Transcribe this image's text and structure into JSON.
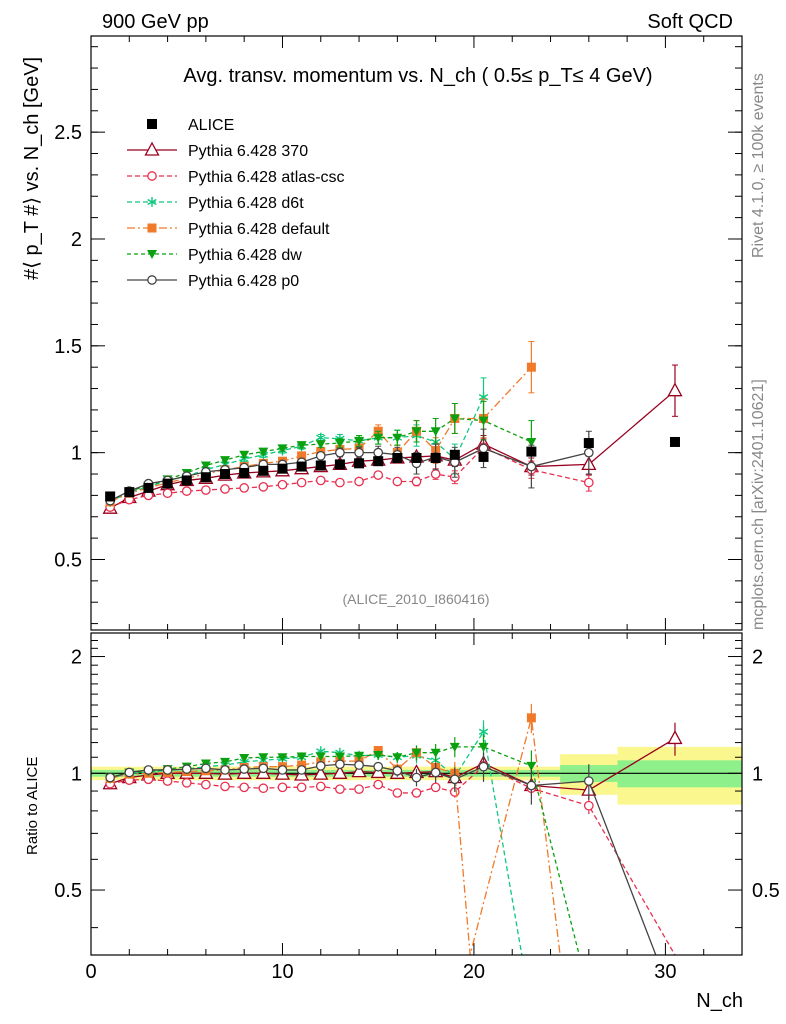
{
  "header": {
    "left": "900 GeV pp",
    "right": "Soft QCD"
  },
  "side": {
    "rivet": "Rivet 4.1.0, ≥ 100k events",
    "mcplots": "mcplots.cern.ch [arXiv:2401.10621]"
  },
  "chart_data": {
    "type": "line",
    "title": "Avg. transv. momentum vs. N_ch ( 0.5≤ p_T≤ 4 GeV)",
    "analysis_tag": "(ALICE_2010_I860416)",
    "xlabel": "N_ch",
    "ylabel": "#⟨ p_T #⟩ vs. N_ch [GeV]",
    "ratio_ylabel": "Ratio to ALICE",
    "xlim": [
      0,
      34
    ],
    "ylim": [
      0.17,
      2.95
    ],
    "ratio_ylim": [
      0.34,
      2.3
    ],
    "x_ticks": [
      "0",
      "10",
      "20",
      "30"
    ],
    "y_ticks": [
      "0.5",
      "1",
      "1.5",
      "2",
      "2.5"
    ],
    "ratio_y_ticks": [
      "0.5",
      "1",
      "2"
    ],
    "reference": {
      "name": "ALICE",
      "x": [
        1,
        2,
        3,
        4,
        5,
        6,
        7,
        8,
        9,
        10,
        11,
        12,
        13,
        14,
        15,
        16,
        17,
        18,
        19,
        20.5,
        23,
        26,
        30.5
      ],
      "y": [
        0.795,
        0.815,
        0.835,
        0.855,
        0.87,
        0.885,
        0.9,
        0.905,
        0.915,
        0.925,
        0.935,
        0.94,
        0.945,
        0.95,
        0.96,
        0.975,
        0.975,
        0.975,
        0.99,
        0.98,
        1.005,
        1.045,
        1.05
      ],
      "ratio_band": [
        {
          "x0": 0,
          "x1": 24.5,
          "green": 0.02,
          "yellow": 0.04
        },
        {
          "x0": 24.5,
          "x1": 27.5,
          "green": 0.05,
          "yellow": 0.12
        },
        {
          "x0": 27.5,
          "x1": 34,
          "green": 0.08,
          "yellow": 0.17
        }
      ]
    },
    "series": [
      {
        "name": "Pythia 6.428 370",
        "color": "#99001f",
        "marker": "triangle-open",
        "dash": "",
        "x": [
          1,
          2,
          3,
          4,
          5,
          6,
          7,
          8,
          9,
          10,
          11,
          12,
          13,
          14,
          15,
          16,
          17,
          18,
          19,
          20.5,
          23,
          26,
          30.5
        ],
        "y": [
          0.74,
          0.79,
          0.82,
          0.85,
          0.87,
          0.88,
          0.895,
          0.905,
          0.91,
          0.915,
          0.925,
          0.935,
          0.945,
          0.96,
          0.965,
          0.975,
          0.98,
          0.985,
          0.965,
          1.04,
          0.935,
          0.945,
          1.29
        ],
        "err": [
          0.01,
          0.01,
          0.01,
          0.01,
          0.01,
          0.01,
          0.01,
          0.01,
          0.01,
          0.01,
          0.01,
          0.01,
          0.01,
          0.012,
          0.014,
          0.016,
          0.02,
          0.025,
          0.03,
          0.04,
          0.04,
          0.05,
          0.12
        ]
      },
      {
        "name": "Pythia 6.428 atlas-csc",
        "color": "#e8304f",
        "marker": "circle-open",
        "dash": "5,3",
        "x": [
          1,
          2,
          3,
          4,
          5,
          6,
          7,
          8,
          9,
          10,
          11,
          12,
          13,
          14,
          15,
          16,
          17,
          18,
          19,
          20.5,
          23,
          26
        ],
        "y": [
          0.745,
          0.78,
          0.8,
          0.81,
          0.82,
          0.825,
          0.83,
          0.835,
          0.84,
          0.85,
          0.86,
          0.87,
          0.86,
          0.865,
          0.895,
          0.865,
          0.865,
          0.9,
          0.885,
          1.025,
          0.92,
          0.86
        ],
        "err": [
          0.01,
          0.01,
          0.01,
          0.01,
          0.01,
          0.01,
          0.01,
          0.01,
          0.01,
          0.01,
          0.01,
          0.012,
          0.012,
          0.012,
          0.015,
          0.015,
          0.02,
          0.025,
          0.03,
          0.04,
          0.04,
          0.04
        ]
      },
      {
        "name": "Pythia 6.428 d6t",
        "color": "#10c880",
        "marker": "star",
        "dash": "5,3",
        "x": [
          1,
          2,
          3,
          4,
          5,
          6,
          7,
          8,
          9,
          10,
          11,
          12,
          13,
          14,
          15,
          16,
          17,
          18,
          19,
          20.5
        ],
        "y": [
          0.77,
          0.815,
          0.84,
          0.87,
          0.89,
          0.92,
          0.945,
          0.97,
          0.99,
          1.01,
          1.03,
          1.07,
          1.065,
          1.055,
          1.07,
          1.07,
          1.08,
          1.05,
          0.97,
          1.26
        ],
        "err": [
          0.01,
          0.01,
          0.01,
          0.01,
          0.01,
          0.01,
          0.01,
          0.012,
          0.012,
          0.012,
          0.014,
          0.015,
          0.02,
          0.025,
          0.03,
          0.035,
          0.05,
          0.06,
          0.07,
          0.09
        ]
      },
      {
        "name": "Pythia 6.428 default",
        "color": "#f07a2a",
        "marker": "square",
        "dash": "8,3,2,3",
        "x": [
          1,
          2,
          3,
          4,
          5,
          6,
          7,
          8,
          9,
          10,
          11,
          12,
          13,
          14,
          15,
          16,
          17,
          18,
          19,
          20.5,
          23
        ],
        "y": [
          0.77,
          0.81,
          0.835,
          0.86,
          0.88,
          0.9,
          0.92,
          0.935,
          0.95,
          0.96,
          0.985,
          1.005,
          1.015,
          1.02,
          1.1,
          1.0,
          1.1,
          1.01,
          1.16,
          1.16,
          1.4
        ],
        "err": [
          0.01,
          0.01,
          0.01,
          0.01,
          0.01,
          0.01,
          0.01,
          0.012,
          0.012,
          0.012,
          0.014,
          0.015,
          0.02,
          0.025,
          0.03,
          0.035,
          0.05,
          0.06,
          0.07,
          0.09,
          0.12
        ]
      },
      {
        "name": "Pythia 6.428 dw",
        "color": "#0ba00f",
        "marker": "triangle-down",
        "dash": "4,3",
        "x": [
          1,
          2,
          3,
          4,
          5,
          6,
          7,
          8,
          9,
          10,
          11,
          12,
          13,
          14,
          15,
          16,
          17,
          18,
          19,
          20.5,
          23
        ],
        "y": [
          0.775,
          0.82,
          0.845,
          0.875,
          0.905,
          0.94,
          0.965,
          0.99,
          1.005,
          1.02,
          1.035,
          1.04,
          1.045,
          1.055,
          1.07,
          1.07,
          1.1,
          1.1,
          1.16,
          1.15,
          1.05
        ],
        "err": [
          0.01,
          0.01,
          0.01,
          0.01,
          0.01,
          0.01,
          0.01,
          0.012,
          0.012,
          0.012,
          0.014,
          0.015,
          0.02,
          0.025,
          0.03,
          0.035,
          0.05,
          0.06,
          0.07,
          0.09,
          0.1
        ]
      },
      {
        "name": "Pythia 6.428 p0",
        "color": "#444444",
        "marker": "circle-open",
        "dash": "",
        "x": [
          1,
          2,
          3,
          4,
          5,
          6,
          7,
          8,
          9,
          10,
          11,
          12,
          13,
          14,
          15,
          16,
          17,
          18,
          19,
          20.5,
          23,
          26
        ],
        "y": [
          0.775,
          0.82,
          0.855,
          0.87,
          0.89,
          0.91,
          0.92,
          0.93,
          0.945,
          0.945,
          0.955,
          0.985,
          1.0,
          1.0,
          1.0,
          0.99,
          0.95,
          0.98,
          0.955,
          1.02,
          0.935,
          1.0
        ],
        "err": [
          0.01,
          0.01,
          0.01,
          0.01,
          0.01,
          0.01,
          0.01,
          0.012,
          0.012,
          0.012,
          0.014,
          0.015,
          0.02,
          0.025,
          0.03,
          0.035,
          0.05,
          0.06,
          0.07,
          0.09,
          0.1,
          0.1
        ]
      }
    ],
    "ratio_series": [
      {
        "name": "Pythia 6.428 370",
        "x": [
          1,
          2,
          3,
          4,
          5,
          6,
          7,
          8,
          9,
          10,
          11,
          12,
          13,
          14,
          15,
          16,
          17,
          18,
          19,
          20.5,
          23,
          26,
          30.5
        ],
        "y": [
          0.94,
          0.975,
          0.99,
          1.0,
          1.0,
          1.0,
          0.995,
          1.0,
          1.0,
          0.995,
          0.99,
          0.995,
          1.0,
          1.01,
          1.005,
          1.0,
          1.005,
          1.01,
          0.975,
          1.06,
          0.93,
          0.905,
          1.23
        ]
      },
      {
        "name": "Pythia 6.428 atlas-csc",
        "x": [
          1,
          2,
          3,
          4,
          5,
          6,
          7,
          8,
          9,
          10,
          11,
          12,
          13,
          14,
          15,
          16,
          17,
          18,
          19,
          20.5,
          23,
          26,
          30.5
        ],
        "y": [
          0.94,
          0.96,
          0.965,
          0.955,
          0.945,
          0.935,
          0.925,
          0.92,
          0.915,
          0.92,
          0.92,
          0.925,
          0.91,
          0.91,
          0.935,
          0.89,
          0.89,
          0.92,
          0.895,
          1.045,
          0.915,
          0.825,
          0.3
        ]
      },
      {
        "name": "Pythia 6.428 d6t",
        "x": [
          1,
          2,
          3,
          4,
          5,
          6,
          7,
          8,
          9,
          10,
          11,
          12,
          13,
          14,
          15,
          16,
          17,
          18,
          19,
          20.5,
          22.5
        ],
        "y": [
          0.97,
          1.0,
          1.005,
          1.02,
          1.025,
          1.04,
          1.05,
          1.07,
          1.08,
          1.09,
          1.1,
          1.14,
          1.13,
          1.11,
          1.115,
          1.1,
          1.11,
          1.08,
          0.98,
          1.28,
          0.3
        ]
      },
      {
        "name": "Pythia 6.428 default",
        "x": [
          1,
          2,
          3,
          4,
          5,
          6,
          7,
          8,
          9,
          10,
          11,
          12,
          13,
          14,
          15,
          16,
          17,
          18,
          19,
          19.8,
          23,
          24.5
        ],
        "y": [
          0.97,
          0.995,
          1.0,
          1.005,
          1.01,
          1.015,
          1.02,
          1.035,
          1.04,
          1.04,
          1.05,
          1.07,
          1.075,
          1.075,
          1.145,
          1.025,
          1.13,
          1.035,
          1.0,
          0.3,
          1.39,
          0.3
        ]
      },
      {
        "name": "Pythia 6.428 dw",
        "x": [
          1,
          2,
          3,
          4,
          5,
          6,
          7,
          8,
          9,
          10,
          11,
          12,
          13,
          14,
          15,
          16,
          17,
          18,
          19,
          20.5,
          23,
          25.5
        ],
        "y": [
          0.975,
          1.005,
          1.01,
          1.025,
          1.04,
          1.06,
          1.07,
          1.095,
          1.1,
          1.1,
          1.105,
          1.105,
          1.105,
          1.11,
          1.115,
          1.1,
          1.13,
          1.13,
          1.17,
          1.17,
          1.045,
          0.3
        ]
      },
      {
        "name": "Pythia 6.428 p0",
        "x": [
          1,
          2,
          3,
          4,
          5,
          6,
          7,
          8,
          9,
          10,
          11,
          12,
          13,
          14,
          15,
          16,
          17,
          18,
          19,
          20.5,
          23,
          26,
          29.5
        ],
        "y": [
          0.975,
          1.005,
          1.02,
          1.02,
          1.025,
          1.03,
          1.02,
          1.025,
          1.03,
          1.02,
          1.02,
          1.045,
          1.055,
          1.05,
          1.04,
          1.015,
          0.975,
          1.005,
          0.965,
          1.04,
          0.93,
          0.955,
          0.3
        ]
      }
    ]
  }
}
